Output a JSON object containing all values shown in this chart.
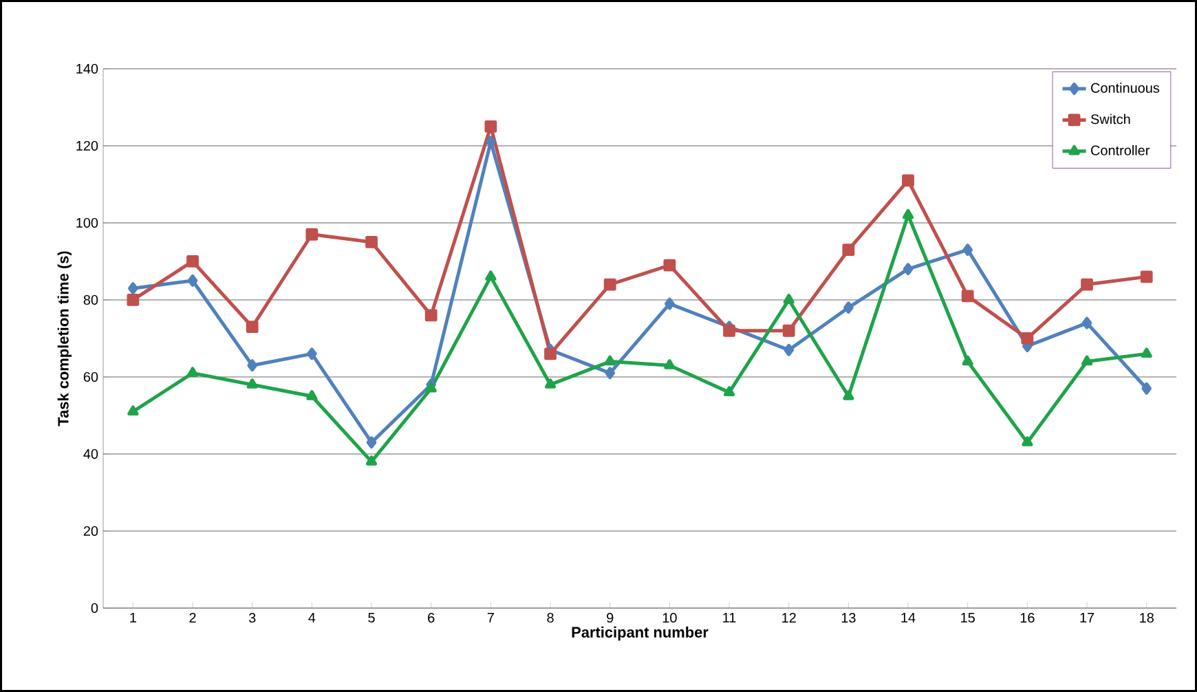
{
  "chart_data": {
    "type": "line",
    "xlabel": "Participant number",
    "ylabel": "Task completion time (s)",
    "categories": [
      "1",
      "2",
      "3",
      "4",
      "5",
      "6",
      "7",
      "8",
      "9",
      "10",
      "11",
      "12",
      "13",
      "14",
      "15",
      "16",
      "17",
      "18"
    ],
    "series": [
      {
        "name": "Continuous",
        "color": "#4f81bd",
        "marker": "diamond",
        "values": [
          83,
          85,
          63,
          66,
          43,
          58,
          121,
          67,
          61,
          79,
          73,
          67,
          78,
          88,
          93,
          68,
          74,
          57
        ]
      },
      {
        "name": "Switch",
        "color": "#c0504d",
        "marker": "square",
        "values": [
          80,
          90,
          73,
          97,
          95,
          76,
          125,
          66,
          84,
          89,
          72,
          72,
          93,
          111,
          81,
          70,
          84,
          86
        ]
      },
      {
        "name": "Controller",
        "color": "#1fa34a",
        "marker": "triangle",
        "values": [
          51,
          61,
          58,
          55,
          38,
          57,
          86,
          58,
          64,
          63,
          56,
          80,
          55,
          102,
          64,
          43,
          64,
          66
        ]
      }
    ],
    "ylim": [
      0,
      140
    ],
    "yticks": [
      0,
      20,
      40,
      60,
      80,
      100,
      120,
      140
    ],
    "grid": "y",
    "legend": "top right",
    "line_style": "solid"
  }
}
